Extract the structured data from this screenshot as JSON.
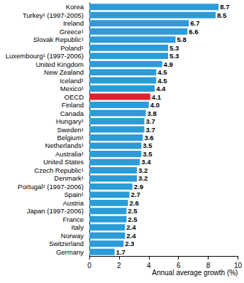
{
  "chart_data": {
    "type": "bar",
    "orientation": "horizontal",
    "categories": [
      "Korea",
      "Turkey¹ (1997-2005)",
      "Ireland",
      "Greece¹",
      "Slovak Republic¹",
      "Poland¹",
      "Luxembourg¹ (1997-2006)",
      "United Kingdom",
      "New Zealand",
      "Iceland¹",
      "Mexico¹",
      "OECD",
      "Finland",
      "Canada",
      "Hungary¹",
      "Sweden¹",
      "Belgium¹",
      "Netherlands¹",
      "Australia¹",
      "United States",
      "Czech Republic¹",
      "Denmark¹",
      "Portugal¹ (1997-2006)",
      "Spain¹",
      "Austria",
      "Japan (1997-2006)",
      "France",
      "Italy",
      "Norway",
      "Switzerland",
      "Germany"
    ],
    "values": [
      8.7,
      8.5,
      6.7,
      6.6,
      5.8,
      5.3,
      5.3,
      4.9,
      4.5,
      4.5,
      4.4,
      4.1,
      4.0,
      3.8,
      3.7,
      3.7,
      3.6,
      3.5,
      3.5,
      3.4,
      3.2,
      3.2,
      2.9,
      2.7,
      2.6,
      2.5,
      2.5,
      2.4,
      2.4,
      2.3,
      1.7
    ],
    "value_labels": [
      "8.7",
      "8.5",
      "6.7",
      "6.6",
      "5.8",
      "5.3",
      "5.3",
      "4.9",
      "4.5",
      "4.5",
      "4.4",
      "4.1",
      "4.0",
      "3.8",
      "3.7",
      "3.7",
      "3.6",
      "3.5",
      "3.5",
      "3.4",
      "3.2",
      "3.2",
      "2.9",
      "2.7",
      "2.6",
      "2.5",
      "2.5",
      "2.4",
      "2.4",
      "2.3",
      "1.7"
    ],
    "colors": [
      "#2b9cd8",
      "#2b9cd8",
      "#2b9cd8",
      "#2b9cd8",
      "#2b9cd8",
      "#2b9cd8",
      "#2b9cd8",
      "#2b9cd8",
      "#2b9cd8",
      "#2b9cd8",
      "#2b9cd8",
      "#e2202c",
      "#2b9cd8",
      "#2b9cd8",
      "#2b9cd8",
      "#2b9cd8",
      "#2b9cd8",
      "#2b9cd8",
      "#2b9cd8",
      "#2b9cd8",
      "#2b9cd8",
      "#2b9cd8",
      "#2b9cd8",
      "#2b9cd8",
      "#2b9cd8",
      "#2b9cd8",
      "#2b9cd8",
      "#2b9cd8",
      "#2b9cd8",
      "#2b9cd8",
      "#2b9cd8"
    ],
    "xlabel": "Annual average growth (%)",
    "xlim": [
      0,
      10
    ],
    "xticks": [
      0,
      2,
      4,
      6,
      8,
      10
    ],
    "grid": false,
    "data_labels": true
  }
}
